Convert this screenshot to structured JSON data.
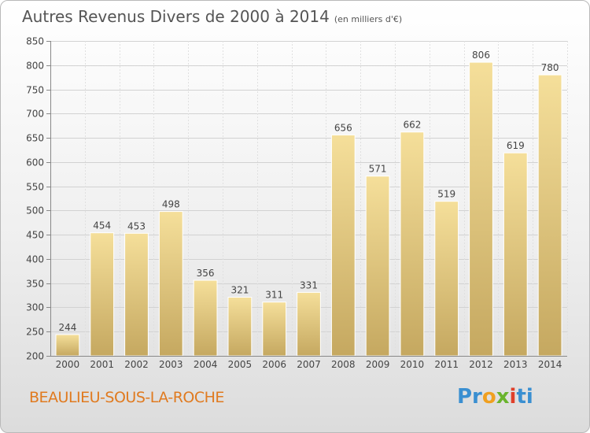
{
  "chart_data": {
    "type": "bar",
    "title": "Autres Revenus Divers de 2000 à 2014",
    "subtitle": "(en milliers d'€)",
    "categories": [
      "2000",
      "2001",
      "2002",
      "2003",
      "2004",
      "2005",
      "2006",
      "2007",
      "2008",
      "2009",
      "2010",
      "2011",
      "2012",
      "2013",
      "2014"
    ],
    "values": [
      244,
      454,
      453,
      498,
      356,
      321,
      311,
      331,
      656,
      571,
      662,
      519,
      806,
      619,
      780
    ],
    "ylim": [
      200,
      850
    ],
    "yticks": [
      200,
      250,
      300,
      350,
      400,
      450,
      500,
      550,
      600,
      650,
      700,
      750,
      800,
      850
    ],
    "grid": true,
    "bar_color_light": "#f5df9a",
    "bar_color_dark": "#c5a860"
  },
  "footer": {
    "commune": "BEAULIEU-SOUS-LA-ROCHE",
    "logo_parts": [
      "Pr",
      "o",
      "x",
      "i",
      "ti"
    ]
  }
}
